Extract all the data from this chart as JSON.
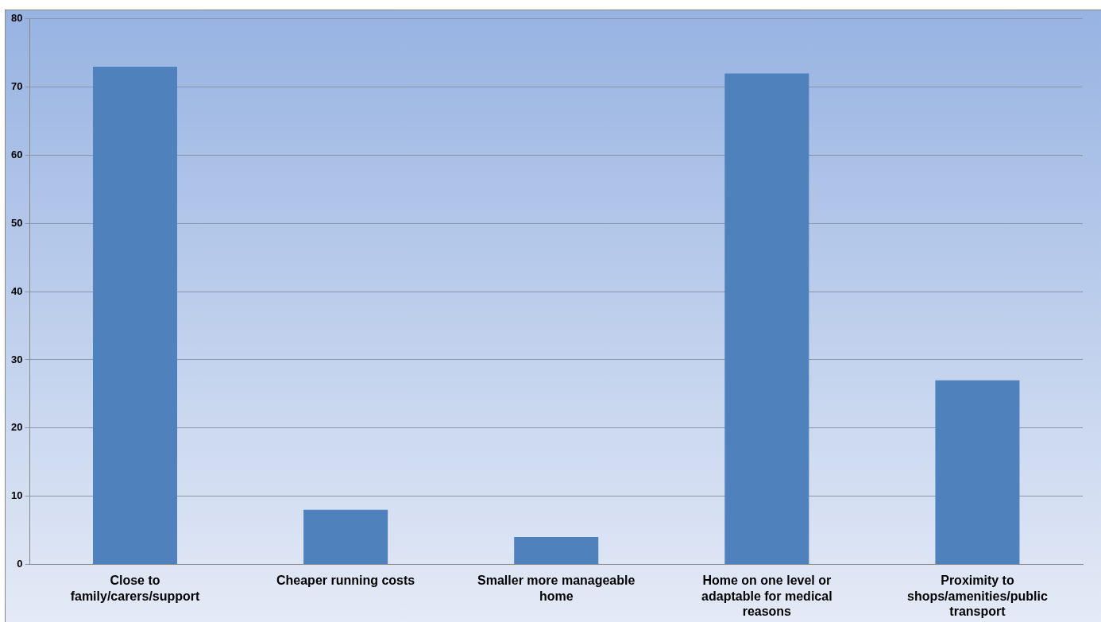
{
  "chart_data": {
    "type": "bar",
    "categories": [
      "Close to family/carers/support",
      "Cheaper running costs",
      "Smaller more manageable home",
      "Home on one level or adaptable for medical reasons",
      "Proximity to shops/amenities/public transport"
    ],
    "values": [
      73,
      8,
      4,
      72,
      27
    ],
    "color": "#4f81bd",
    "ylim": [
      0,
      80
    ],
    "yticks": [
      0,
      10,
      20,
      30,
      40,
      50,
      60,
      70,
      80
    ],
    "grid": "y",
    "legend": false
  }
}
